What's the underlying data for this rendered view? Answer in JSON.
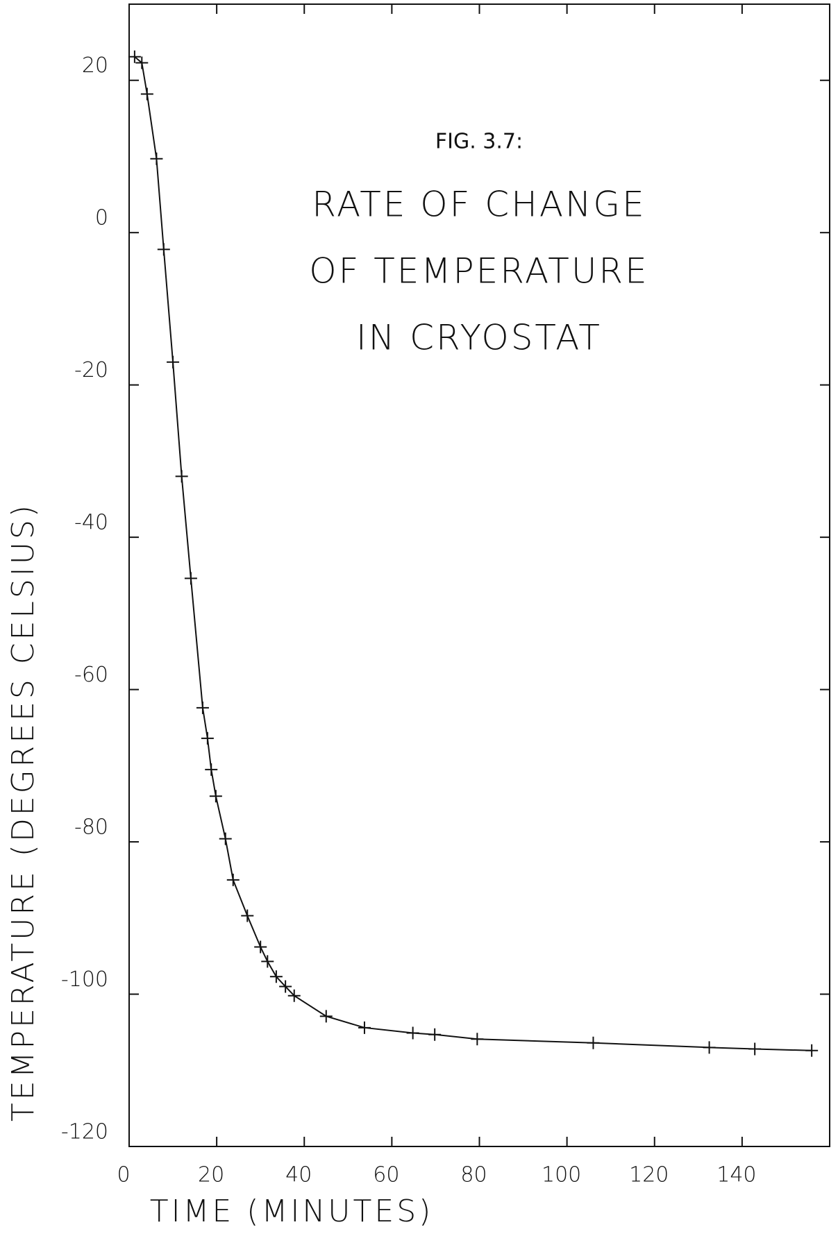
{
  "chart_data": {
    "type": "line",
    "annotations": [
      "FIG. 3.7:",
      "RATE OF CHANGE",
      "OF TEMPERATURE",
      "IN CRYOSTAT"
    ],
    "x_label": "TIME (MINUTES)",
    "y_label": "TEMPERATURE (DEGREES CELSIUS)",
    "x": [
      1.25,
      2.9,
      4.1,
      6.25,
      7.9,
      10,
      12,
      14.1,
      16.8,
      17.9,
      18.75,
      19.8,
      22,
      23.75,
      27,
      30,
      31.6,
      33.6,
      35.7,
      37.7,
      45,
      53.75,
      64.8,
      69.8,
      79.5,
      106,
      132.5,
      142.9,
      155.9
    ],
    "series": [
      {
        "color": "#111111",
        "values": [
          23.1,
          22.3,
          18.2,
          9.7,
          -2.2,
          -17,
          -32,
          -45.4,
          -62.4,
          -66.4,
          -70.5,
          -74,
          -79.6,
          -85,
          -89.7,
          -93.8,
          -95.7,
          -97.7,
          -99,
          -100.2,
          -102.9,
          -104.4,
          -105.1,
          -105.3,
          -105.9,
          -106.4,
          -107,
          -107.2,
          -107.4
        ]
      }
    ],
    "xlim": [
      0,
      160
    ],
    "xticks": [
      0,
      20,
      40,
      60,
      80,
      100,
      120,
      140
    ],
    "ylim": [
      -120,
      30
    ],
    "yticks": [
      -120,
      -100,
      -80,
      -60,
      -40,
      -20,
      0,
      20
    ],
    "grid": false
  }
}
